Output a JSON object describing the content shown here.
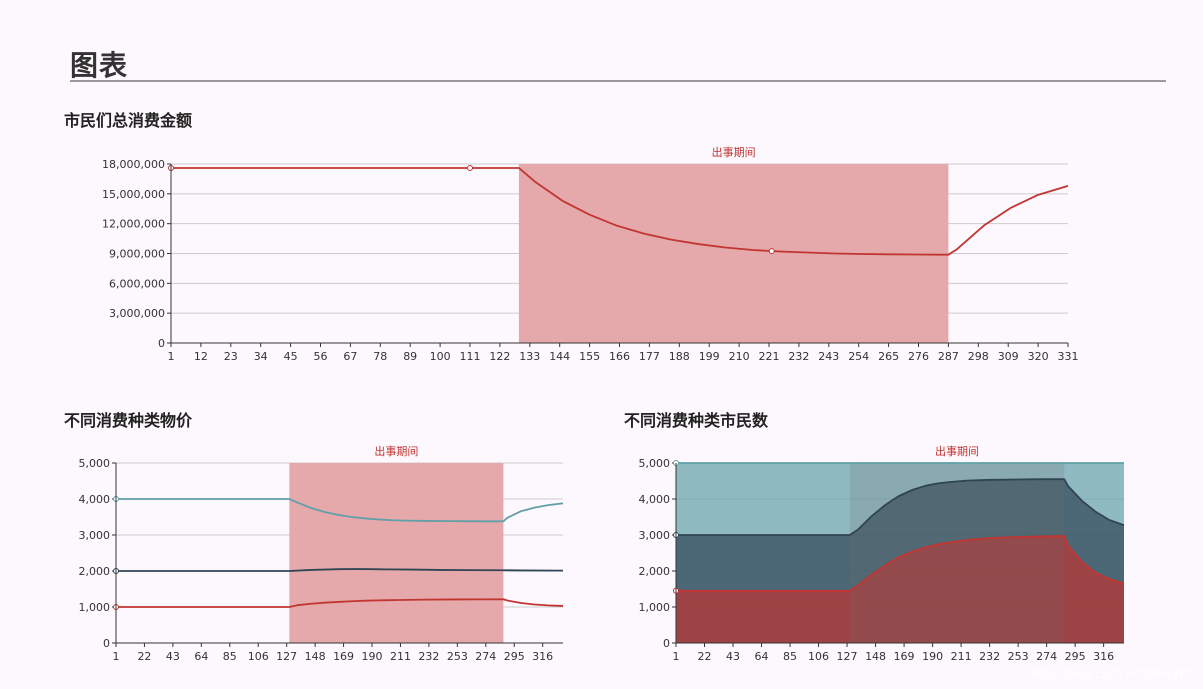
{
  "page": {
    "title": "图表",
    "watermark": "https://blog.csdn.net/BerryBC"
  },
  "colors": {
    "red": "#c23531",
    "teal": "#61a0a8",
    "navy": "#2f4554",
    "band": "#e5a8ab",
    "grid": "#cccccc"
  },
  "chart_data": [
    {
      "type": "line",
      "title": "市民们总消费金额",
      "mark_area_label": "出事期间",
      "mark_area": [
        129,
        287
      ],
      "xlim": [
        1,
        331
      ],
      "ylim": [
        0,
        18000000
      ],
      "x_ticks": [
        "1",
        "12",
        "23",
        "34",
        "45",
        "56",
        "67",
        "78",
        "89",
        "100",
        "111",
        "122",
        "133",
        "144",
        "155",
        "166",
        "177",
        "188",
        "199",
        "210",
        "221",
        "232",
        "243",
        "254",
        "265",
        "276",
        "287",
        "298",
        "309",
        "320",
        "331"
      ],
      "y_ticks": [
        "0",
        "3,000,000",
        "6,000,000",
        "9,000,000",
        "12,000,000",
        "15,000,000",
        "18,000,000"
      ],
      "series": [
        {
          "color": "#c23531",
          "x": [
            1,
            50,
            100,
            129,
            135,
            145,
            155,
            165,
            175,
            185,
            195,
            205,
            215,
            225,
            235,
            245,
            255,
            265,
            275,
            285,
            287,
            290,
            300,
            310,
            320,
            331
          ],
          "y": [
            17600000,
            17600000,
            17600000,
            17600000,
            16200000,
            14300000,
            12900000,
            11800000,
            11000000,
            10400000,
            9950000,
            9600000,
            9350000,
            9200000,
            9100000,
            9000000,
            8950000,
            8920000,
            8900000,
            8880000,
            8880000,
            9400000,
            11800000,
            13600000,
            14900000,
            15800000
          ],
          "symbols_x": [
            1,
            111,
            222
          ]
        }
      ]
    },
    {
      "type": "line",
      "title": "不同消费种类物价",
      "mark_area_label": "出事期间",
      "mark_area": [
        129,
        287
      ],
      "xlim": [
        1,
        331
      ],
      "ylim": [
        0,
        5000
      ],
      "x_ticks": [
        "1",
        "22",
        "43",
        "64",
        "85",
        "106",
        "127",
        "148",
        "169",
        "190",
        "211",
        "232",
        "253",
        "274",
        "295",
        "316"
      ],
      "y_ticks": [
        "0",
        "1,000",
        "2,000",
        "3,000",
        "4,000",
        "5,000"
      ],
      "series": [
        {
          "color": "#61a0a8",
          "x": [
            1,
            50,
            129,
            135,
            145,
            155,
            165,
            175,
            185,
            195,
            205,
            215,
            230,
            250,
            270,
            287,
            290,
            300,
            310,
            320,
            331
          ],
          "y": [
            4000,
            4000,
            4000,
            3900,
            3750,
            3640,
            3560,
            3500,
            3460,
            3430,
            3410,
            3400,
            3390,
            3385,
            3380,
            3380,
            3480,
            3660,
            3760,
            3830,
            3880
          ],
          "symbols_x": [
            1
          ]
        },
        {
          "color": "#2f4554",
          "x": [
            1,
            50,
            129,
            145,
            165,
            180,
            200,
            220,
            240,
            260,
            287,
            300,
            331
          ],
          "y": [
            2000,
            2000,
            2000,
            2030,
            2050,
            2055,
            2045,
            2040,
            2030,
            2025,
            2020,
            2015,
            2010
          ],
          "symbols_x": [
            1
          ]
        },
        {
          "color": "#c23531",
          "x": [
            1,
            50,
            129,
            135,
            145,
            155,
            165,
            175,
            185,
            195,
            210,
            230,
            250,
            270,
            287,
            290,
            300,
            310,
            320,
            331
          ],
          "y": [
            1000,
            1000,
            1000,
            1050,
            1090,
            1120,
            1140,
            1160,
            1175,
            1185,
            1195,
            1205,
            1210,
            1212,
            1215,
            1180,
            1110,
            1070,
            1045,
            1030
          ],
          "symbols_x": [
            1
          ]
        }
      ]
    },
    {
      "type": "area",
      "title": "不同消费种类市民数",
      "mark_area_label": "出事期间",
      "mark_area": [
        129,
        287
      ],
      "xlim": [
        1,
        331
      ],
      "ylim": [
        0,
        5000
      ],
      "x_ticks": [
        "1",
        "22",
        "43",
        "64",
        "85",
        "106",
        "127",
        "148",
        "169",
        "190",
        "211",
        "232",
        "253",
        "274",
        "295",
        "316"
      ],
      "y_ticks": [
        "0",
        "1,000",
        "2,000",
        "3,000",
        "4,000",
        "5,000"
      ],
      "series": [
        {
          "color": "#c23531",
          "x": [
            1,
            50,
            129,
            135,
            145,
            155,
            165,
            175,
            185,
            195,
            205,
            215,
            230,
            250,
            270,
            287,
            290,
            300,
            310,
            320,
            331
          ],
          "y": [
            1450,
            1450,
            1450,
            1600,
            1900,
            2150,
            2380,
            2540,
            2660,
            2750,
            2810,
            2860,
            2910,
            2940,
            2960,
            2970,
            2700,
            2250,
            1950,
            1780,
            1650
          ],
          "symbols_x": [
            1
          ]
        },
        {
          "color": "#2f4554",
          "x": [
            1,
            50,
            129,
            135,
            145,
            155,
            165,
            175,
            185,
            195,
            205,
            215,
            230,
            250,
            270,
            287,
            290,
            300,
            310,
            320,
            331
          ],
          "y": [
            3000,
            3000,
            3000,
            3150,
            3520,
            3830,
            4080,
            4250,
            4370,
            4440,
            4480,
            4510,
            4530,
            4540,
            4550,
            4550,
            4350,
            3950,
            3650,
            3420,
            3270
          ],
          "symbols_x": [
            1
          ]
        },
        {
          "color": "#61a0a8",
          "x": [
            1,
            331
          ],
          "y": [
            5000,
            5000
          ],
          "symbols_x": [
            1
          ]
        }
      ]
    }
  ]
}
